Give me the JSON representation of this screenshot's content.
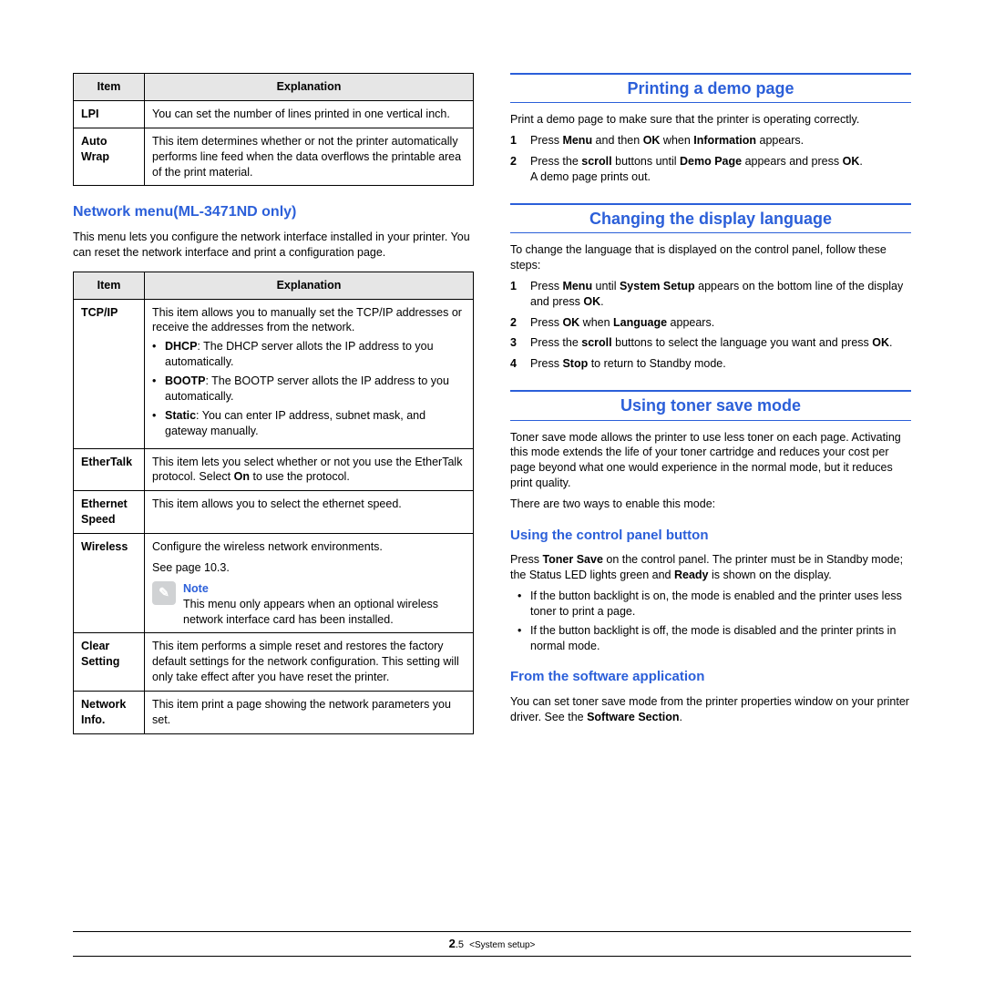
{
  "colors": {
    "heading": "#2b5fd9",
    "th_bg": "#e6e6e6",
    "border": "#000000",
    "text": "#000000",
    "bg": "#ffffff"
  },
  "left": {
    "table1": {
      "headers": [
        "Item",
        "Explanation"
      ],
      "rows": [
        {
          "item": "LPI",
          "text": "You can set the number of lines printed in one vertical inch."
        },
        {
          "item": "Auto Wrap",
          "text": "This item determines whether or not the printer automatically performs line feed when the data overflows the printable area of the print material."
        }
      ]
    },
    "h_network": "Network menu(ML-3471ND only)",
    "network_intro": "This menu lets you configure the network interface installed in your printer. You can reset the network interface and print a configuration page.",
    "table2": {
      "headers": [
        "Item",
        "Explanation"
      ],
      "rows": {
        "tcpip": {
          "item": "TCP/IP",
          "intro": "This item allows you to manually set the TCP/IP addresses or receive the addresses from the network.",
          "bullets": [
            "<b>DHCP</b>: The DHCP server allots the IP address to you automatically.",
            "<b>BOOTP</b>: The BOOTP server allots the IP address to you automatically.",
            "<b>Static</b>: You can enter IP address, subnet mask, and gateway manually."
          ]
        },
        "ethertalk": {
          "item": "EtherTalk",
          "text": "This item lets you select whether or not you use the EtherTalk protocol. Select <b>On</b> to use the protocol."
        },
        "ethspeed": {
          "item": "Ethernet Speed",
          "text": "This item allows you to select the ethernet speed."
        },
        "wireless": {
          "item": "Wireless",
          "line1": "Configure the wireless network environments.",
          "line2": "See page 10.3.",
          "note_title": "Note",
          "note_text": "This menu only appears when an optional wireless network interface card has been installed."
        },
        "clear": {
          "item": "Clear Setting",
          "text": "This item performs a simple reset and restores the factory default settings for the network configuration. This setting will only take effect after you have reset the printer."
        },
        "netinfo": {
          "item": "Network Info.",
          "text": "This item print a page showing the network parameters you set."
        }
      }
    }
  },
  "right": {
    "h_demo": "Printing a demo page",
    "demo_intro": "Print a demo page to make sure that the printer is operating correctly.",
    "demo_steps": [
      "Press <b>Menu</b> and then <b>OK</b> when <b>Information</b> appears.",
      "Press the <b>scroll</b> buttons until <b>Demo Page</b> appears and press <b>OK</b>.<br>A demo page prints out."
    ],
    "h_lang": "Changing the display language",
    "lang_intro": "To change the language that is displayed on the control panel, follow these steps:",
    "lang_steps": [
      "Press <b>Menu</b> until <b>System Setup</b> appears on the bottom line of the display and press <b>OK</b>.",
      "Press <b>OK</b> when <b>Language</b> appears.",
      "Press the <b>scroll</b> buttons to select the language you want and press <b>OK</b>.",
      "Press <b>Stop</b> to return to Standby mode."
    ],
    "h_toner": "Using toner save mode",
    "toner_p1": "Toner save mode allows the printer to use less toner on each page. Activating this mode extends the life of your toner cartridge and reduces your cost per page beyond what one would experience in the normal mode, but it reduces print quality.",
    "toner_p2": "There are two ways to enable this mode:",
    "sub_cp": "Using the control panel button",
    "cp_p": "Press <b>Toner Save</b> on the control panel. The printer must be in Standby mode; the Status LED lights green and <b>Ready</b> is shown on the display.",
    "cp_bullets": [
      "If the button backlight is on, the mode is enabled and the printer uses less toner to print a page.",
      "If the button backlight is off, the mode is disabled and the printer prints in normal mode."
    ],
    "sub_sw": "From the software application",
    "sw_p": "You can set toner save mode from the printer properties window on your printer driver. See the <b>Software Section</b>."
  },
  "footer": {
    "chapter": "2",
    "page": ".5",
    "title": "<System setup>"
  }
}
